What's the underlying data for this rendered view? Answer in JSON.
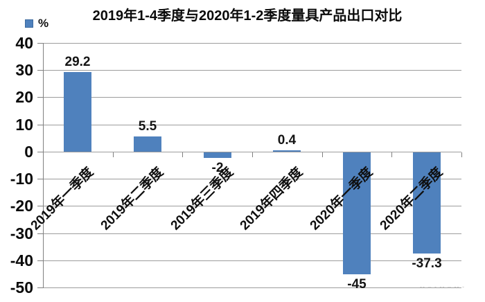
{
  "page": {
    "background": "#ffffff"
  },
  "watermark": {
    "text": "-- – - -- – -- - – --"
  },
  "chart_data": {
    "type": "bar",
    "title": "2019年1-4季度与2020年1-2季度量具产品出口对比",
    "legend": {
      "label": "%",
      "position": "top-left"
    },
    "categories": [
      "2019年一季度",
      "2019年二季度",
      "2019年三季度",
      "2019年四季度",
      "2020年一季度",
      "2020年二季度"
    ],
    "values": [
      29.2,
      5.5,
      -2,
      0.4,
      -45,
      -37.3
    ],
    "value_labels": [
      "29.2",
      "5.5",
      "-2",
      "0.4",
      "-45",
      "-37.3"
    ],
    "ylabel": "%",
    "ylim": [
      -50,
      40
    ],
    "ytick_step": 10,
    "grid": true,
    "bar_color": "#4F81BD",
    "gridline_color": "#9c9c9c",
    "axis_color": "#7f7f7f",
    "label_color": "#141414"
  }
}
